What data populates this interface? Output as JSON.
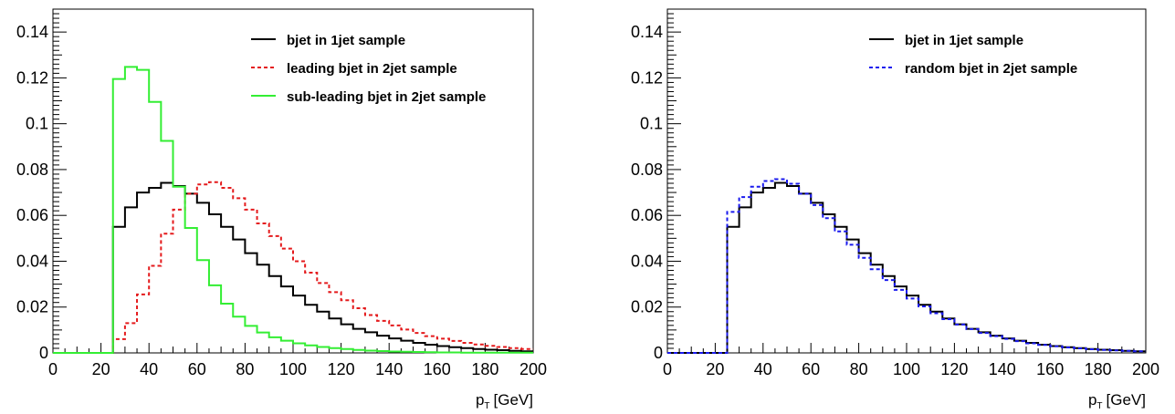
{
  "chart_data": [
    {
      "type": "step",
      "xlabel": "p_T [GeV]",
      "xlabel_main": "p",
      "xlabel_sub": "T",
      "xlabel_unit": "[GeV]",
      "xlim": [
        0,
        200
      ],
      "ylim": [
        0,
        0.15
      ],
      "xticks": [
        0,
        20,
        40,
        60,
        80,
        100,
        120,
        140,
        160,
        180,
        200
      ],
      "xtick_labels": [
        "0",
        "20",
        "40",
        "60",
        "80",
        "100",
        "120",
        "140",
        "160",
        "180",
        "200"
      ],
      "yticks": [
        0,
        0.02,
        0.04,
        0.06,
        0.08,
        0.1,
        0.12,
        0.14
      ],
      "ytick_labels": [
        "0",
        "0.02",
        "0.04",
        "0.06",
        "0.08",
        "0.1",
        "0.12",
        "0.14"
      ],
      "bin_width": 5,
      "x_start": 0,
      "legend_position": "top-right",
      "series": [
        {
          "name": "bjet in 1jet sample",
          "color": "#000000",
          "dash": "solid",
          "values": [
            0,
            0,
            0,
            0,
            0,
            0.055,
            0.0635,
            0.07,
            0.072,
            0.0742,
            0.0728,
            0.0695,
            0.0655,
            0.0605,
            0.055,
            0.0495,
            0.0435,
            0.0385,
            0.0335,
            0.029,
            0.025,
            0.021,
            0.018,
            0.015,
            0.0125,
            0.0105,
            0.009,
            0.0075,
            0.0063,
            0.0053,
            0.0044,
            0.0036,
            0.003,
            0.0025,
            0.0021,
            0.0017,
            0.0014,
            0.0012,
            0.0009,
            0.0007
          ]
        },
        {
          "name": "leading bjet in 2jet sample",
          "color": "#e41a1c",
          "dash": "dashed",
          "values": [
            0,
            0,
            0,
            0,
            0,
            0.006,
            0.013,
            0.0255,
            0.038,
            0.052,
            0.0625,
            0.0695,
            0.0735,
            0.0745,
            0.072,
            0.0675,
            0.0625,
            0.0565,
            0.051,
            0.0455,
            0.04,
            0.035,
            0.0305,
            0.0265,
            0.023,
            0.0195,
            0.0165,
            0.014,
            0.012,
            0.0102,
            0.0087,
            0.0073,
            0.0062,
            0.0052,
            0.0044,
            0.0037,
            0.0031,
            0.0026,
            0.0021,
            0.0017
          ]
        },
        {
          "name": "sub-leading bjet in 2jet sample",
          "color": "#33ee33",
          "dash": "solid",
          "values": [
            0,
            0,
            0,
            0,
            0,
            0.1195,
            0.1248,
            0.1235,
            0.1095,
            0.0925,
            0.0725,
            0.0545,
            0.0405,
            0.0295,
            0.0215,
            0.0158,
            0.0118,
            0.0089,
            0.0068,
            0.0053,
            0.0042,
            0.0033,
            0.0026,
            0.0021,
            0.0017,
            0.0013,
            0.001,
            0.0008,
            0.0006,
            0.0005,
            0.0004,
            0.0003,
            0.0002,
            0.0002,
            0.0001,
            0.0001,
            0.0001,
            0.0001,
            0.0001,
            0.0001
          ]
        }
      ]
    },
    {
      "type": "step",
      "xlabel": "p_T [GeV]",
      "xlabel_main": "p",
      "xlabel_sub": "T",
      "xlabel_unit": "[GeV]",
      "xlim": [
        0,
        200
      ],
      "ylim": [
        0,
        0.15
      ],
      "xticks": [
        0,
        20,
        40,
        60,
        80,
        100,
        120,
        140,
        160,
        180,
        200
      ],
      "xtick_labels": [
        "0",
        "20",
        "40",
        "60",
        "80",
        "100",
        "120",
        "140",
        "160",
        "180",
        "200"
      ],
      "yticks": [
        0,
        0.02,
        0.04,
        0.06,
        0.08,
        0.1,
        0.12,
        0.14
      ],
      "ytick_labels": [
        "0",
        "0.02",
        "0.04",
        "0.06",
        "0.08",
        "0.1",
        "0.12",
        "0.14"
      ],
      "bin_width": 5,
      "x_start": 0,
      "legend_position": "top-right",
      "series": [
        {
          "name": "bjet in 1jet sample",
          "color": "#000000",
          "dash": "solid",
          "values": [
            0,
            0,
            0,
            0,
            0,
            0.055,
            0.0635,
            0.07,
            0.072,
            0.0742,
            0.0728,
            0.0695,
            0.0655,
            0.0605,
            0.055,
            0.0495,
            0.0435,
            0.0385,
            0.0335,
            0.029,
            0.025,
            0.021,
            0.018,
            0.015,
            0.0125,
            0.0105,
            0.009,
            0.0075,
            0.0063,
            0.0053,
            0.0044,
            0.0036,
            0.003,
            0.0025,
            0.0021,
            0.0017,
            0.0014,
            0.0012,
            0.0009,
            0.0007
          ]
        },
        {
          "name": "random bjet in 2jet sample",
          "color": "#1a1aee",
          "dash": "dashed",
          "values": [
            0,
            0,
            0,
            0,
            0,
            0.0615,
            0.068,
            0.0725,
            0.075,
            0.0758,
            0.0738,
            0.0695,
            0.0645,
            0.0588,
            0.053,
            0.0472,
            0.0415,
            0.0365,
            0.0318,
            0.0275,
            0.0237,
            0.0203,
            0.0173,
            0.0147,
            0.0124,
            0.0104,
            0.0087,
            0.0073,
            0.0061,
            0.0051,
            0.0042,
            0.0035,
            0.0029,
            0.0024,
            0.002,
            0.0016,
            0.0013,
            0.0011,
            0.0009,
            0.0007
          ]
        }
      ]
    }
  ]
}
